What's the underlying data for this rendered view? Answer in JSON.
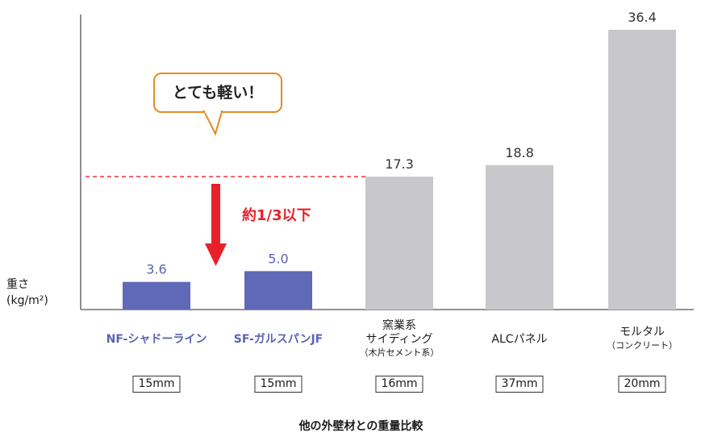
{
  "chart_data": {
    "type": "bar",
    "categories": [
      "NF-シャドーライン",
      "SF-ガルスパンJF",
      "窯業系サイディング",
      "ALCパネル",
      "モルタル"
    ],
    "category_lines": [
      {
        "main": [
          "NF-シャドーライン"
        ],
        "sub": ""
      },
      {
        "main": [
          "SF-ガルスパンJF"
        ],
        "sub": ""
      },
      {
        "main": [
          "窯業系",
          "サイディング"
        ],
        "sub": "（木片セメント系）"
      },
      {
        "main": [
          "ALCパネル"
        ],
        "sub": ""
      },
      {
        "main": [
          "モルタル"
        ],
        "sub": "（コンクリート）"
      }
    ],
    "thickness": [
      "15mm",
      "15mm",
      "16mm",
      "37mm",
      "20mm"
    ],
    "values": [
      3.6,
      5.0,
      17.3,
      18.8,
      36.4
    ],
    "value_labels": [
      "3.6",
      "5.0",
      "17.3",
      "18.8",
      "36.4"
    ],
    "colors": [
      "#6068b8",
      "#6068b8",
      "#c8c7cc",
      "#c8c7cc",
      "#c8c7cc"
    ],
    "highlight_label_color": "#5a62b4",
    "ylabel": [
      "重さ",
      "(kg/m²)"
    ],
    "ylim": [
      0,
      38
    ],
    "grid": false,
    "caption": "他の外壁材との重量比較",
    "callout": "とても軽い！",
    "reference_value": 17.3,
    "annotation": "約1/3以下",
    "accent_colors": {
      "arrow": "#e8202a",
      "bubble_border": "#e58a26",
      "reference_line": "#e8202a"
    }
  }
}
